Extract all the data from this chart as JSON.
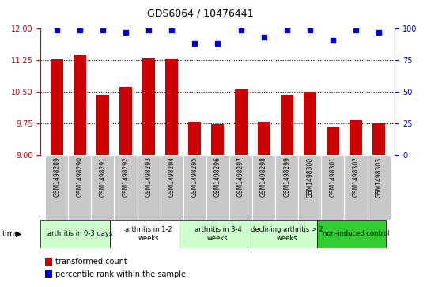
{
  "title": "GDS6064 / 10476441",
  "samples": [
    "GSM1498289",
    "GSM1498290",
    "GSM1498291",
    "GSM1498292",
    "GSM1498293",
    "GSM1498294",
    "GSM1498295",
    "GSM1498296",
    "GSM1498297",
    "GSM1498298",
    "GSM1498299",
    "GSM1498300",
    "GSM1498301",
    "GSM1498302",
    "GSM1498303"
  ],
  "bar_values": [
    11.28,
    11.38,
    10.42,
    10.62,
    11.32,
    11.3,
    9.78,
    9.73,
    10.57,
    9.78,
    10.43,
    10.5,
    9.68,
    9.82,
    9.75
  ],
  "percentile_values": [
    99,
    99,
    99,
    97,
    99,
    99,
    88,
    88,
    99,
    93,
    99,
    99,
    91,
    99,
    97
  ],
  "ylim_left": [
    9,
    12
  ],
  "ylim_right": [
    0,
    100
  ],
  "yticks_left": [
    9,
    9.75,
    10.5,
    11.25,
    12
  ],
  "yticks_right": [
    0,
    25,
    50,
    75,
    100
  ],
  "bar_color": "#cc0000",
  "dot_color": "#0000cc",
  "groups": [
    {
      "label": "arthritis in 0-3 days",
      "start": 0,
      "end": 3,
      "color": "#ccffcc"
    },
    {
      "label": "arthritis in 1-2\nweeks",
      "start": 3,
      "end": 6,
      "color": "#ffffff"
    },
    {
      "label": "arthritis in 3-4\nweeks",
      "start": 6,
      "end": 9,
      "color": "#ccffcc"
    },
    {
      "label": "declining arthritis > 2\nweeks",
      "start": 9,
      "end": 12,
      "color": "#ccffcc"
    },
    {
      "label": "non-induced control",
      "start": 12,
      "end": 15,
      "color": "#33cc33"
    }
  ],
  "xlabel": "time",
  "legend_bar_label": "transformed count",
  "legend_dot_label": "percentile rank within the sample",
  "tick_color_left": "#cc0000",
  "tick_color_right": "#0000cc",
  "bg_color": "#c8c8c8",
  "bar_width": 0.55
}
